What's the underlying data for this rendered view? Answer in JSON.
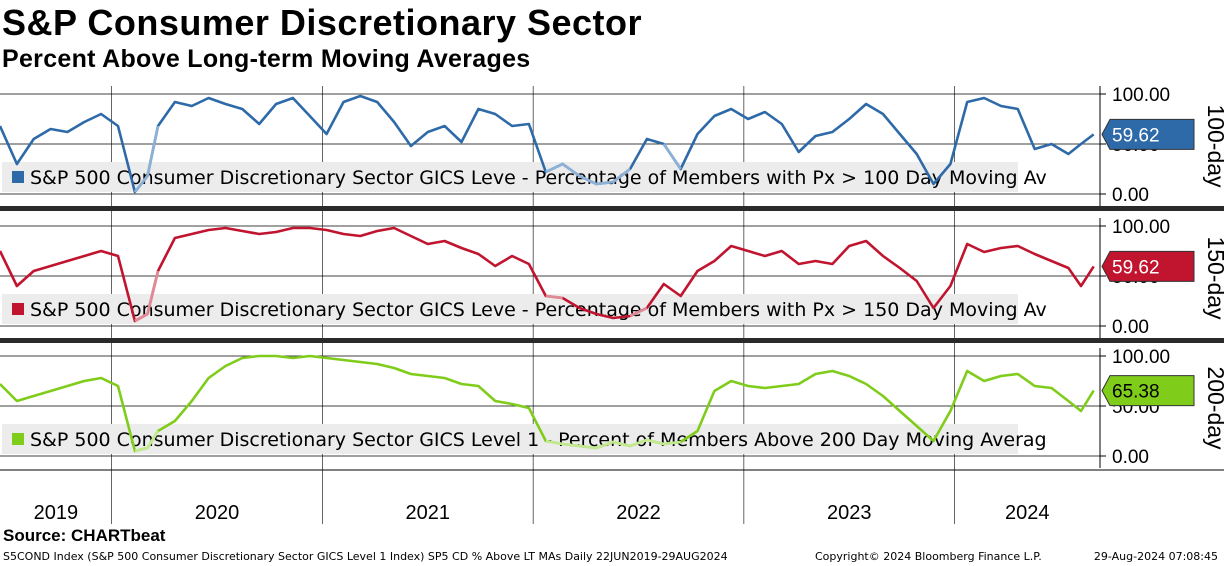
{
  "title": "S&P Consumer Discretionary Sector",
  "subtitle": "Percent Above Long-term Moving Averages",
  "source": "Source: CHARTbeat",
  "footer": {
    "left": "S5COND Index (S&P 500 Consumer Discretionary Sector GICS Level 1 Index) SP5 CD % Above LT MAs  Daily 22JUN2019-29AUG2024",
    "copyright": "Copyright© 2024 Bloomberg Finance L.P.",
    "timestamp": "29-Aug-2024 07:08:45"
  },
  "colors": {
    "blue": "#2e6aa8",
    "blue_light": "#8cb0d6",
    "red": "#c0142f",
    "red_light": "#e08a98",
    "green": "#7fcc1a",
    "green_light": "#c2e890",
    "grid": "#000000",
    "legend_bg": "#ececec"
  },
  "chart_data": [
    {
      "type": "line",
      "panel": "100-day",
      "side_label": "100-day",
      "legend": "S&P 500 Consumer Discretionary Sector GICS Leve - Percentage of Members with Px > 100 Day Moving Av",
      "last_value": 59.62,
      "last_value_label": "59.62",
      "yticks": [
        "100.00",
        "50.00",
        "0.00"
      ],
      "ylim": [
        0,
        100
      ],
      "color_key": "blue",
      "light_key": "blue_light",
      "x": [
        2019.47,
        2019.55,
        2019.63,
        2019.71,
        2019.79,
        2019.87,
        2019.95,
        2020.03,
        2020.11,
        2020.17,
        2020.22,
        2020.3,
        2020.38,
        2020.46,
        2020.54,
        2020.62,
        2020.7,
        2020.78,
        2020.86,
        2020.94,
        2021.02,
        2021.1,
        2021.18,
        2021.26,
        2021.34,
        2021.42,
        2021.5,
        2021.58,
        2021.66,
        2021.74,
        2021.82,
        2021.9,
        2021.98,
        2022.06,
        2022.14,
        2022.22,
        2022.3,
        2022.38,
        2022.46,
        2022.54,
        2022.62,
        2022.7,
        2022.78,
        2022.86,
        2022.94,
        2023.02,
        2023.1,
        2023.18,
        2023.26,
        2023.34,
        2023.42,
        2023.5,
        2023.58,
        2023.66,
        2023.74,
        2023.82,
        2023.9,
        2023.98,
        2024.06,
        2024.14,
        2024.22,
        2024.3,
        2024.38,
        2024.46,
        2024.54,
        2024.6,
        2024.66
      ],
      "values": [
        68,
        30,
        55,
        65,
        62,
        72,
        80,
        68,
        2,
        18,
        68,
        92,
        88,
        96,
        90,
        85,
        70,
        90,
        96,
        78,
        60,
        92,
        98,
        92,
        72,
        48,
        62,
        68,
        52,
        85,
        80,
        68,
        70,
        22,
        30,
        18,
        10,
        12,
        25,
        55,
        50,
        25,
        60,
        78,
        85,
        75,
        82,
        70,
        42,
        58,
        62,
        75,
        90,
        80,
        60,
        40,
        10,
        30,
        92,
        96,
        88,
        85,
        45,
        50,
        40,
        50,
        59.62
      ],
      "light_ranges": [
        [
          2020.11,
          2020.23
        ],
        [
          2022.06,
          2022.48
        ],
        [
          2022.6,
          2022.72
        ],
        [
          2023.86,
          2023.96
        ]
      ]
    },
    {
      "type": "line",
      "panel": "150-day",
      "side_label": "150-day",
      "legend": "S&P 500 Consumer Discretionary Sector GICS Leve - Percentage of Members with Px > 150 Day Moving Av",
      "last_value": 59.62,
      "last_value_label": "59.62",
      "yticks": [
        "100.00",
        "50.00",
        "0.00"
      ],
      "ylim": [
        0,
        100
      ],
      "color_key": "red",
      "light_key": "red_light",
      "x": [
        2019.47,
        2019.55,
        2019.63,
        2019.71,
        2019.79,
        2019.87,
        2019.95,
        2020.03,
        2020.11,
        2020.17,
        2020.22,
        2020.3,
        2020.38,
        2020.46,
        2020.54,
        2020.62,
        2020.7,
        2020.78,
        2020.86,
        2020.94,
        2021.02,
        2021.1,
        2021.18,
        2021.26,
        2021.34,
        2021.42,
        2021.5,
        2021.58,
        2021.66,
        2021.74,
        2021.82,
        2021.9,
        2021.98,
        2022.06,
        2022.14,
        2022.22,
        2022.3,
        2022.38,
        2022.46,
        2022.54,
        2022.62,
        2022.7,
        2022.78,
        2022.86,
        2022.94,
        2023.02,
        2023.1,
        2023.18,
        2023.26,
        2023.34,
        2023.42,
        2023.5,
        2023.58,
        2023.66,
        2023.74,
        2023.82,
        2023.9,
        2023.98,
        2024.06,
        2024.14,
        2024.22,
        2024.3,
        2024.38,
        2024.46,
        2024.54,
        2024.6,
        2024.66
      ],
      "values": [
        75,
        40,
        55,
        60,
        65,
        70,
        75,
        70,
        5,
        12,
        55,
        88,
        92,
        96,
        98,
        95,
        92,
        94,
        98,
        98,
        96,
        92,
        90,
        95,
        98,
        90,
        82,
        85,
        78,
        72,
        60,
        70,
        62,
        30,
        28,
        18,
        12,
        8,
        10,
        18,
        42,
        30,
        55,
        65,
        80,
        75,
        70,
        75,
        62,
        65,
        62,
        80,
        85,
        70,
        58,
        45,
        18,
        40,
        82,
        74,
        78,
        80,
        72,
        65,
        58,
        40,
        59.62
      ],
      "light_ranges": [
        [
          2020.11,
          2020.23
        ],
        [
          2022.02,
          2022.2
        ],
        [
          2022.4,
          2022.56
        ],
        [
          2023.84,
          2023.95
        ]
      ]
    },
    {
      "type": "line",
      "panel": "200-day",
      "side_label": "200-day",
      "legend": "S&P 500 Consumer Discretionary Sector GICS Level 1 - Percent of Members Above 200 Day Moving Averag",
      "last_value": 65.38,
      "last_value_label": "65.38",
      "yticks": [
        "100.00",
        "50.00",
        "0.00"
      ],
      "ylim": [
        0,
        100
      ],
      "color_key": "green",
      "light_key": "green_light",
      "x": [
        2019.47,
        2019.55,
        2019.63,
        2019.71,
        2019.79,
        2019.87,
        2019.95,
        2020.03,
        2020.11,
        2020.17,
        2020.22,
        2020.3,
        2020.38,
        2020.46,
        2020.54,
        2020.62,
        2020.7,
        2020.78,
        2020.86,
        2020.94,
        2021.02,
        2021.1,
        2021.18,
        2021.26,
        2021.34,
        2021.42,
        2021.5,
        2021.58,
        2021.66,
        2021.74,
        2021.82,
        2021.9,
        2021.98,
        2022.06,
        2022.14,
        2022.22,
        2022.3,
        2022.38,
        2022.46,
        2022.54,
        2022.62,
        2022.7,
        2022.78,
        2022.86,
        2022.94,
        2023.02,
        2023.1,
        2023.18,
        2023.26,
        2023.34,
        2023.42,
        2023.5,
        2023.58,
        2023.66,
        2023.74,
        2023.82,
        2023.9,
        2023.98,
        2024.06,
        2024.14,
        2024.22,
        2024.3,
        2024.38,
        2024.46,
        2024.54,
        2024.6,
        2024.66
      ],
      "values": [
        72,
        55,
        60,
        65,
        70,
        75,
        78,
        70,
        5,
        8,
        25,
        35,
        55,
        78,
        90,
        98,
        100,
        100,
        98,
        100,
        98,
        96,
        94,
        92,
        88,
        82,
        80,
        78,
        72,
        70,
        55,
        52,
        48,
        15,
        12,
        10,
        8,
        14,
        10,
        16,
        12,
        14,
        25,
        65,
        75,
        70,
        68,
        70,
        72,
        82,
        85,
        80,
        72,
        60,
        45,
        30,
        15,
        45,
        85,
        75,
        80,
        82,
        70,
        68,
        55,
        45,
        65.38
      ],
      "light_ranges": [
        [
          2020.11,
          2020.26
        ],
        [
          2022.02,
          2022.76
        ],
        [
          2023.86,
          2023.96
        ]
      ]
    }
  ],
  "x_axis": {
    "xlim": [
      2019.47,
      2024.69
    ],
    "year_labels": [
      "2019",
      "2020",
      "2021",
      "2022",
      "2023",
      "2024"
    ],
    "year_starts": [
      2020.0,
      2021.0,
      2022.0,
      2023.0,
      2024.0
    ]
  }
}
